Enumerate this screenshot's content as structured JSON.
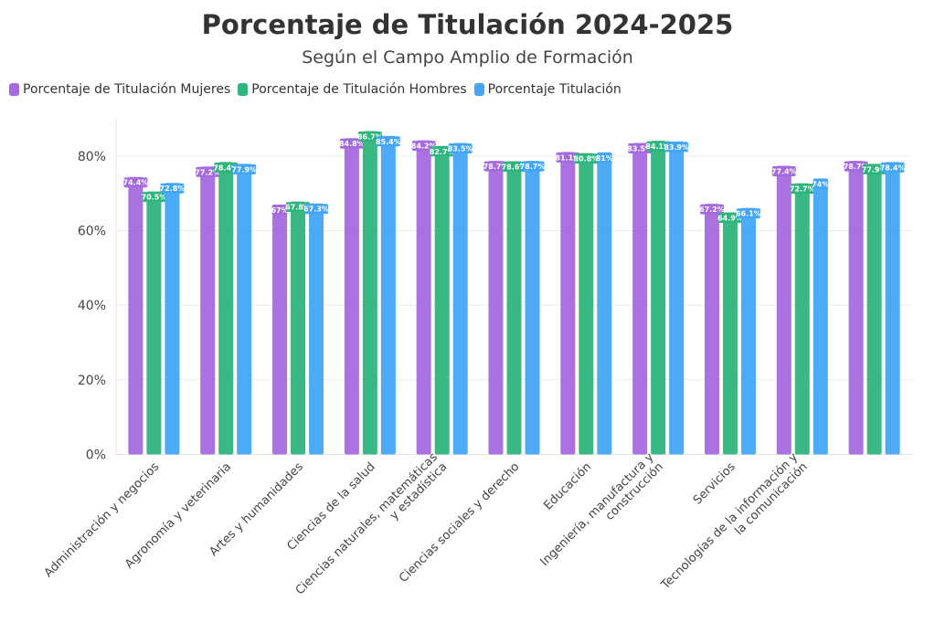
{
  "chart_data": {
    "type": "bar",
    "title": "Porcentaje de Titulación 2024-2025",
    "subtitle": "Según el Campo Amplio de Formación",
    "xlabel": "",
    "ylabel": "",
    "ylim": [
      0,
      90
    ],
    "yticks": [
      0,
      20,
      40,
      60,
      80
    ],
    "ytick_labels": [
      "0%",
      "20%",
      "40%",
      "60%",
      "80%"
    ],
    "grid": true,
    "legend_position": "top-left",
    "categories": [
      "Administración y negocios",
      "Agronomía y veterinaria",
      "Artes y humanidades",
      "Ciencias de la salud",
      "Ciencias naturales, matemáticas\ny estadística",
      "Ciencias sociales y derecho",
      "Educación",
      "Ingeniería, manufactura y\nconstrucción",
      "Servicios",
      "Tecnologías de la información y\nla comunicación",
      ""
    ],
    "series": [
      {
        "name": "Porcentaje de Titulación Mujeres",
        "color": "#a46ade",
        "values": [
          74.4,
          77.2,
          67,
          84.8,
          84.2,
          78.7,
          81.1,
          83.5,
          67.2,
          77.4,
          78.7
        ],
        "labels": [
          "74.4%",
          "77.2%",
          "67%",
          "84.8%",
          "84.2%",
          "78.7%",
          "81.1%",
          "83.5%",
          "67.2%",
          "77.4%",
          "78.7%"
        ]
      },
      {
        "name": "Porcentaje de Titulación Hombres",
        "color": "#2eb47d",
        "values": [
          70.5,
          78.4,
          67.8,
          86.7,
          82.7,
          78.6,
          80.8,
          84.1,
          64.9,
          72.7,
          77.9
        ],
        "labels": [
          "70.5%",
          "78.4%",
          "67.8%",
          "86.7%",
          "82.7%",
          "78.6%",
          "80.8%",
          "84.1%",
          "64.9%",
          "72.7%",
          "77.9%"
        ]
      },
      {
        "name": "Porcentaje Titulación",
        "color": "#42a5f5",
        "values": [
          72.8,
          77.9,
          67.3,
          85.4,
          83.5,
          78.7,
          81,
          83.9,
          66.1,
          74,
          78.4
        ],
        "labels": [
          "72.8%",
          "77.9%",
          "67.3%",
          "85.4%",
          "83.5%",
          "78.7%",
          "81%",
          "83.9%",
          "66.1%",
          "74%",
          "78.4%"
        ]
      }
    ]
  }
}
